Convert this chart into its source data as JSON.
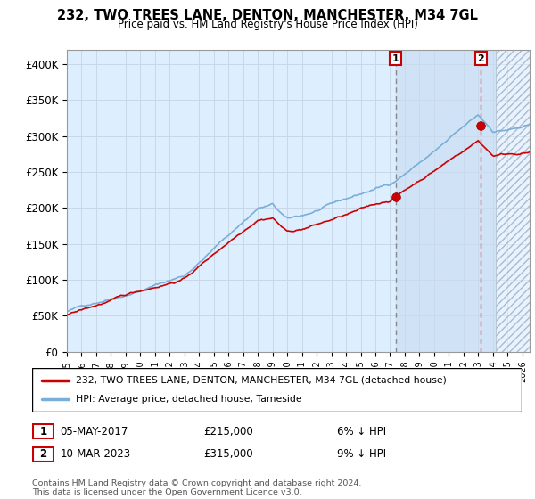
{
  "title": "232, TWO TREES LANE, DENTON, MANCHESTER, M34 7GL",
  "subtitle": "Price paid vs. HM Land Registry's House Price Index (HPI)",
  "ylim": [
    0,
    420000
  ],
  "yticks": [
    0,
    50000,
    100000,
    150000,
    200000,
    250000,
    300000,
    350000,
    400000
  ],
  "ytick_labels": [
    "£0",
    "£50K",
    "£100K",
    "£150K",
    "£200K",
    "£250K",
    "£300K",
    "£350K",
    "£400K"
  ],
  "xlim_start": 1995.0,
  "xlim_end": 2026.5,
  "sale1_year": 2017.37,
  "sale1_price": 215000,
  "sale2_year": 2023.19,
  "sale2_price": 315000,
  "hpi_line_color": "#7aaed6",
  "price_line_color": "#cc0000",
  "sale_dot_color": "#cc0000",
  "grid_color": "#c8d8e8",
  "bg_color": "#ddeeff",
  "shade_between_color": "#c8ddf0",
  "hatch_color": "#aabbcc",
  "legend_line1": "232, TWO TREES LANE, DENTON, MANCHESTER, M34 7GL (detached house)",
  "legend_line2": "HPI: Average price, detached house, Tameside",
  "sale1_date": "05-MAY-2017",
  "sale1_amount": "£215,000",
  "sale1_hpi_text": "6% ↓ HPI",
  "sale2_date": "10-MAR-2023",
  "sale2_amount": "£315,000",
  "sale2_hpi_text": "9% ↓ HPI",
  "footnote": "Contains HM Land Registry data © Crown copyright and database right 2024.\nThis data is licensed under the Open Government Licence v3.0.",
  "hatch_start": 2024.17
}
